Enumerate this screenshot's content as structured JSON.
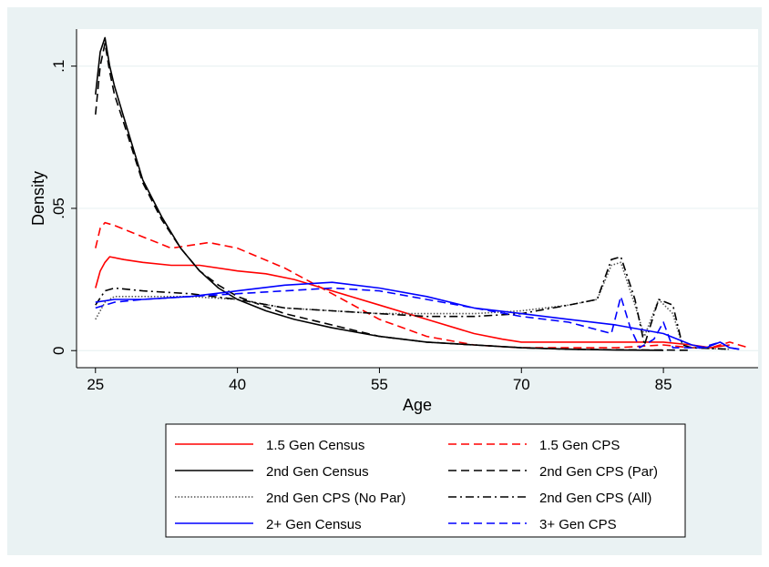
{
  "chart_data": {
    "type": "line",
    "xlabel": "Age",
    "ylabel": "Density",
    "xlim": [
      23,
      95
    ],
    "ylim": [
      -0.006,
      0.113
    ],
    "x_ticks": [
      25,
      40,
      55,
      70,
      85
    ],
    "y_ticks": [
      0,
      0.05,
      0.1
    ],
    "y_tick_labels": [
      "0",
      ".05",
      ".1"
    ],
    "grid": true,
    "legend_position": "bottom",
    "series": [
      {
        "name": "1.5 Gen Census",
        "color": "#ff0000",
        "dash": "solid",
        "x": [
          25,
          25.5,
          26,
          26.5,
          28,
          30,
          33,
          36,
          40,
          43,
          46,
          50,
          55,
          60,
          65,
          68,
          70,
          73,
          75,
          80,
          85,
          88,
          90,
          92
        ],
        "y": [
          0.022,
          0.028,
          0.031,
          0.033,
          0.032,
          0.031,
          0.03,
          0.03,
          0.028,
          0.027,
          0.025,
          0.021,
          0.016,
          0.011,
          0.006,
          0.004,
          0.003,
          0.003,
          0.003,
          0.003,
          0.003,
          0.002,
          0.001,
          0.002
        ]
      },
      {
        "name": "1.5 Gen CPS",
        "color": "#ff0000",
        "dash": "dashed",
        "x": [
          25,
          25.5,
          26,
          27,
          30,
          33,
          35,
          37,
          40,
          45,
          50,
          55,
          60,
          65,
          70,
          75,
          80,
          85,
          88,
          90,
          92,
          94
        ],
        "y": [
          0.036,
          0.043,
          0.045,
          0.044,
          0.04,
          0.036,
          0.037,
          0.038,
          0.036,
          0.029,
          0.02,
          0.011,
          0.005,
          0.002,
          0.001,
          0.001,
          0.001,
          0.002,
          0.001,
          0.001,
          0.003,
          0.001
        ]
      },
      {
        "name": "2nd Gen Census",
        "color": "#000000",
        "dash": "solid",
        "x": [
          25,
          25.5,
          26,
          26.5,
          27,
          28,
          29,
          30,
          32,
          34,
          36,
          38,
          40,
          43,
          46,
          50,
          55,
          60,
          65,
          70,
          75,
          80,
          85
        ],
        "y": [
          0.09,
          0.105,
          0.11,
          0.1,
          0.093,
          0.082,
          0.071,
          0.06,
          0.047,
          0.036,
          0.028,
          0.022,
          0.018,
          0.014,
          0.011,
          0.008,
          0.005,
          0.003,
          0.002,
          0.001,
          0.0005,
          0.0002,
          0.0001
        ]
      },
      {
        "name": "2nd Gen CPS (Par)",
        "color": "#000000",
        "dash": "dashed",
        "x": [
          25,
          25.5,
          26,
          26.5,
          27,
          28,
          30,
          32,
          34,
          36,
          38,
          40,
          45,
          50,
          55,
          60,
          65,
          70,
          75,
          80,
          85,
          88
        ],
        "y": [
          0.083,
          0.1,
          0.108,
          0.098,
          0.09,
          0.08,
          0.059,
          0.046,
          0.036,
          0.028,
          0.023,
          0.019,
          0.013,
          0.009,
          0.005,
          0.003,
          0.002,
          0.001,
          0.0005,
          0.0003,
          0.0002,
          0.0001
        ]
      },
      {
        "name": "2nd Gen CPS (No Par)",
        "color": "#555555",
        "dash": "dotted",
        "x": [
          25,
          26,
          27,
          30,
          35,
          40,
          45,
          50,
          55,
          60,
          65,
          70,
          75,
          78,
          79.5,
          80.5,
          82,
          83,
          84.5,
          86,
          87,
          88,
          92
        ],
        "y": [
          0.011,
          0.017,
          0.019,
          0.019,
          0.019,
          0.018,
          0.015,
          0.014,
          0.013,
          0.013,
          0.013,
          0.014,
          0.016,
          0.018,
          0.03,
          0.031,
          0.016,
          0.005,
          0.018,
          0.013,
          0.002,
          0.001,
          0.0005
        ]
      },
      {
        "name": "2nd Gen CPS (All)",
        "color": "#000000",
        "dash": "dashdot",
        "x": [
          25,
          26,
          27,
          30,
          35,
          40,
          45,
          50,
          55,
          60,
          65,
          70,
          75,
          78,
          79.5,
          80.5,
          82,
          83,
          84.5,
          86,
          87,
          88,
          92
        ],
        "y": [
          0.016,
          0.021,
          0.022,
          0.021,
          0.02,
          0.018,
          0.015,
          0.014,
          0.013,
          0.012,
          0.012,
          0.013,
          0.016,
          0.018,
          0.032,
          0.033,
          0.018,
          0.002,
          0.018,
          0.016,
          0.002,
          0.001,
          0.0005
        ]
      },
      {
        "name": "2+ Gen Census",
        "color": "#0000ff",
        "dash": "solid",
        "x": [
          25,
          27,
          30,
          35,
          40,
          45,
          50,
          55,
          60,
          65,
          70,
          75,
          80,
          85,
          88,
          89.5,
          91,
          92,
          93
        ],
        "y": [
          0.017,
          0.018,
          0.018,
          0.019,
          0.021,
          0.023,
          0.024,
          0.022,
          0.019,
          0.015,
          0.013,
          0.011,
          0.009,
          0.006,
          0.002,
          0.001,
          0.003,
          0.001,
          0.0005
        ]
      },
      {
        "name": "3+ Gen CPS",
        "color": "#0000ff",
        "dash": "dashed",
        "x": [
          25,
          27,
          30,
          35,
          40,
          45,
          50,
          55,
          60,
          65,
          70,
          75,
          79.5,
          80.5,
          81.5,
          82.5,
          84,
          85,
          86,
          87,
          89,
          91,
          92,
          93
        ],
        "y": [
          0.015,
          0.017,
          0.018,
          0.019,
          0.02,
          0.021,
          0.022,
          0.021,
          0.018,
          0.015,
          0.012,
          0.01,
          0.006,
          0.019,
          0.008,
          0.001,
          0.004,
          0.01,
          0.001,
          0.001,
          0.001,
          0.003,
          0.001,
          0.0005
        ]
      }
    ]
  },
  "legend": {
    "items": [
      {
        "label": "1.5 Gen Census",
        "series": 0
      },
      {
        "label": "1.5 Gen CPS",
        "series": 1
      },
      {
        "label": "2nd Gen Census",
        "series": 2
      },
      {
        "label": "2nd Gen CPS (Par)",
        "series": 3
      },
      {
        "label": "2nd Gen CPS (No Par)",
        "series": 4
      },
      {
        "label": "2nd Gen CPS (All)",
        "series": 5
      },
      {
        "label": "2+ Gen Census",
        "series": 6
      },
      {
        "label": "3+ Gen CPS",
        "series": 7
      }
    ]
  },
  "colors": {
    "outer_background": "#eaf2f3",
    "plot_background": "#ffffff",
    "grid": "#eaf2f3"
  }
}
